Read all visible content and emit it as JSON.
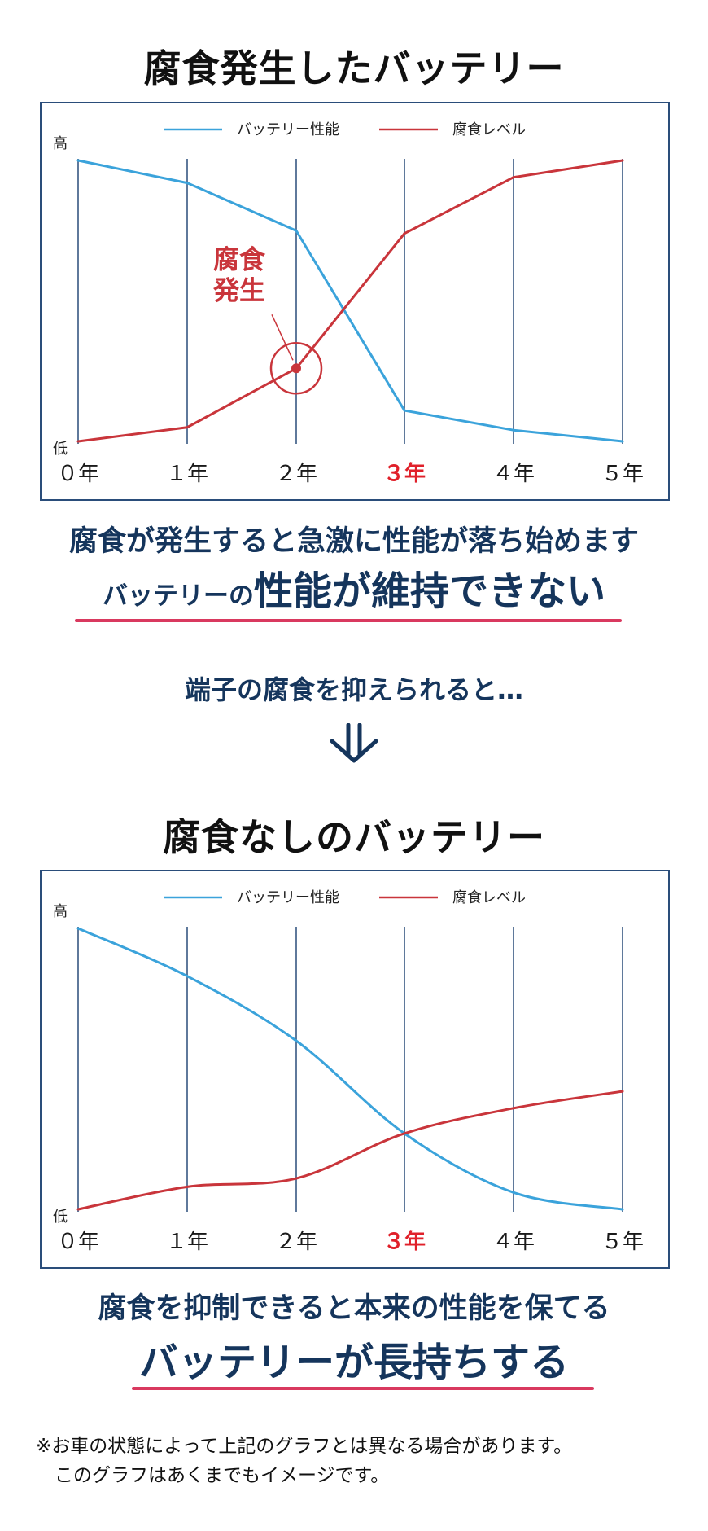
{
  "section1": {
    "title": "腐食発生したバッテリー",
    "message_line1": "腐食が発生すると急激に性能が落ち始めます",
    "message_line2_small": "バッテリーの",
    "message_line2_big": "性能が維持できない"
  },
  "transition": {
    "text": "端子の腐食を抑えられると…"
  },
  "section2": {
    "title": "腐食なしのバッテリー",
    "message_line1": "腐食を抑制できると本来の性能を保てる",
    "message_line2": "バッテリーが長持ちする"
  },
  "note": {
    "line1": "※お車の状態によって上記のグラフとは異なる場合があります。",
    "line2": "このグラフはあくまでもイメージです。"
  },
  "colors": {
    "performance": "#3ba3db",
    "corrosion": "#c9353b",
    "highlight_year": "#e0202a",
    "navy": "#15355c",
    "underline": "#d9395f",
    "gridline": "#2a4d7a"
  },
  "chart_data": [
    {
      "type": "line",
      "x": [
        "０年",
        "１年",
        "２年",
        "３年",
        "４年",
        "５年"
      ],
      "highlight_category": "３年",
      "ylabel_high": "高",
      "ylabel_low": "低",
      "ylim": [
        0,
        100
      ],
      "legend_position": "top-center",
      "series": [
        {
          "name": "バッテリー性能",
          "color": "#3ba3db",
          "values": [
            100,
            92,
            75,
            11,
            4,
            0
          ]
        },
        {
          "name": "腐食レベル",
          "color": "#c9353b",
          "values": [
            0,
            5,
            26,
            74,
            94,
            100
          ]
        }
      ],
      "annotation": {
        "text_line1": "腐食",
        "text_line2": "発生",
        "x_index": 2,
        "value": 26
      }
    },
    {
      "type": "line",
      "x": [
        "０年",
        "１年",
        "２年",
        "３年",
        "４年",
        "５年"
      ],
      "highlight_category": "３年",
      "ylabel_high": "高",
      "ylabel_low": "低",
      "ylim": [
        0,
        100
      ],
      "legend_position": "top-center",
      "series": [
        {
          "name": "バッテリー性能",
          "color": "#3ba3db",
          "values": [
            100,
            83,
            60,
            27,
            6,
            0
          ]
        },
        {
          "name": "腐食レベル",
          "color": "#c9353b",
          "values": [
            0,
            8,
            11,
            27,
            36,
            42
          ]
        }
      ]
    }
  ]
}
